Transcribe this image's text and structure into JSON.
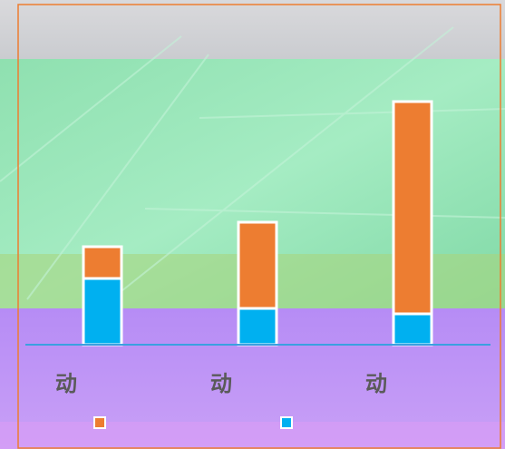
{
  "chart_data": {
    "type": "stacked-bar",
    "categories": [
      "动",
      "动",
      "动"
    ],
    "series": [
      {
        "color": "#00b0f0",
        "values": [
          73,
          40,
          34
        ]
      },
      {
        "color": "#ed7d31",
        "values": [
          35,
          95,
          234
        ]
      }
    ],
    "ylim": [
      0,
      280
    ],
    "axis_color": "#3aa0e0"
  }
}
